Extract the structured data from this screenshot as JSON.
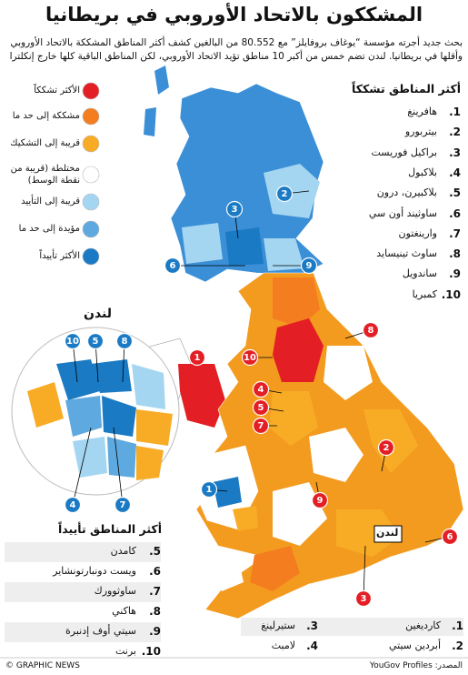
{
  "title": "المشككون بالاتحاد الأوروبي في بريطانيا",
  "intro": "بحث جديد أجرته مؤسسة “يوغاف بروفايلز” مع 80.552 من البالغين كشف أكثر المناطق المشككة بالاتحاد الأوروبي وأقلها في بريطانيا. لندن تضم خمس من أكبر 10 مناطق تؤيد الاتحاد الأوروبي، لكن المناطق الباقية كلها خارج إنكلترا",
  "legend": [
    {
      "label": "الأكثر تشككاً",
      "color": "#e31e24"
    },
    {
      "label": "مشككة إلى حد ما",
      "color": "#f47d20"
    },
    {
      "label": "قريبة إلى التشكيك",
      "color": "#f8ac26"
    },
    {
      "label": "مختلطة (قريبة من نقطة الوسط)",
      "color": "#ffffff"
    },
    {
      "label": "قريبة إلى التأييد",
      "color": "#a4d6f2"
    },
    {
      "label": "مؤيدة إلى حد ما",
      "color": "#5ea9df"
    },
    {
      "label": "الأكثر تأييداً",
      "color": "#1a7ac4"
    }
  ],
  "most_sceptic": {
    "title": "أكثر المناطق تشككاً",
    "items": [
      {
        "rank": "1.",
        "name": "هافرينغ"
      },
      {
        "rank": "2.",
        "name": "بيتربورو"
      },
      {
        "rank": "3.",
        "name": "براكيل فوريست"
      },
      {
        "rank": "4.",
        "name": "بلاكبول"
      },
      {
        "rank": "5.",
        "name": "بلاكبيرن، درون"
      },
      {
        "rank": "6.",
        "name": "ساوثيند أون سي"
      },
      {
        "rank": "7.",
        "name": "وارينغتون"
      },
      {
        "rank": "8.",
        "name": "ساوث تينيسايد"
      },
      {
        "rank": "9.",
        "name": "ساندويل"
      },
      {
        "rank": "10.",
        "name": "كمبريا"
      }
    ],
    "markers": [
      "1",
      "2",
      "3",
      "4",
      "5",
      "6",
      "7",
      "8",
      "9",
      "10"
    ]
  },
  "most_pro": {
    "title": "أكثر المناطق تأييداً",
    "items": [
      {
        "rank": "1.",
        "name": "كارديغين"
      },
      {
        "rank": "2.",
        "name": "أبردين سيتي"
      },
      {
        "rank": "3.",
        "name": "ستيرلينغ"
      },
      {
        "rank": "4.",
        "name": "لامبث"
      },
      {
        "rank": "5.",
        "name": "كامدن"
      },
      {
        "rank": "6.",
        "name": "ويست دونبارتونشاير"
      },
      {
        "rank": "7.",
        "name": "ساوثوورك"
      },
      {
        "rank": "8.",
        "name": "هاكني"
      },
      {
        "rank": "9.",
        "name": "سيتي أوف إدنبرة"
      },
      {
        "rank": "10.",
        "name": "برنت"
      }
    ],
    "markers": [
      "1",
      "2",
      "3",
      "4",
      "5",
      "6",
      "7",
      "8",
      "9",
      "10"
    ]
  },
  "london_inset_title": "لندن",
  "london_box_label": "لندن",
  "source": "المصدر: YouGov Profiles",
  "credit": "© GRAPHIC NEWS"
}
